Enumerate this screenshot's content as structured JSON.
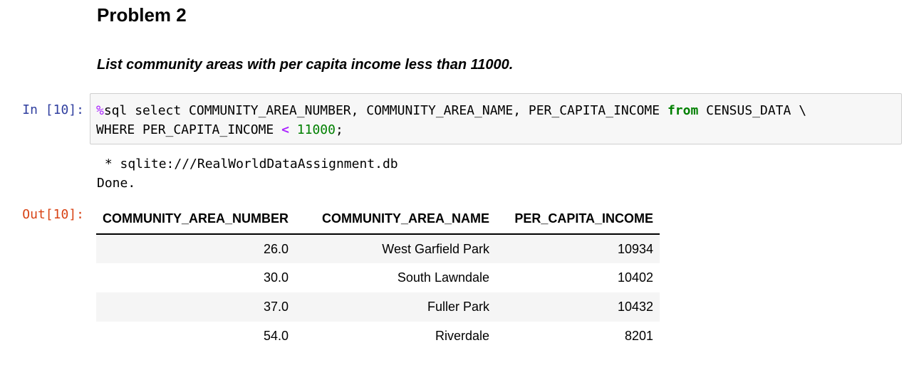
{
  "markdown": {
    "title": "Problem 2",
    "question": "List community areas with per capita income less than 11000."
  },
  "input_cell": {
    "prompt": "In [10]:",
    "line1": {
      "magic": "%",
      "text_a": "sql select COMMUNITY_AREA_NUMBER, COMMUNITY_AREA_NAME, PER_CAPITA_INCOME ",
      "kw_from": "from",
      "text_b": " CENSUS_DATA \\"
    },
    "line2": {
      "text_a": "WHERE PER_CAPITA_INCOME ",
      "op": "<",
      "space": " ",
      "number": "11000",
      "end": ";"
    }
  },
  "output": {
    "stdout_line1": " * sqlite:///RealWorldDataAssignment.db",
    "stdout_line2": "Done.",
    "prompt": "Out[10]:",
    "table": {
      "headers": [
        "COMMUNITY_AREA_NUMBER",
        "COMMUNITY_AREA_NAME",
        "PER_CAPITA_INCOME"
      ],
      "rows": [
        [
          "26.0",
          "West Garfield Park",
          "10934"
        ],
        [
          "30.0",
          "South Lawndale",
          "10402"
        ],
        [
          "37.0",
          "Fuller Park",
          "10432"
        ],
        [
          "54.0",
          "Riverdale",
          "8201"
        ]
      ]
    }
  },
  "colors": {
    "in_prompt": "#303f9f",
    "out_prompt": "#d84315",
    "keyword": "#008000",
    "magic": "#aa22ff"
  }
}
